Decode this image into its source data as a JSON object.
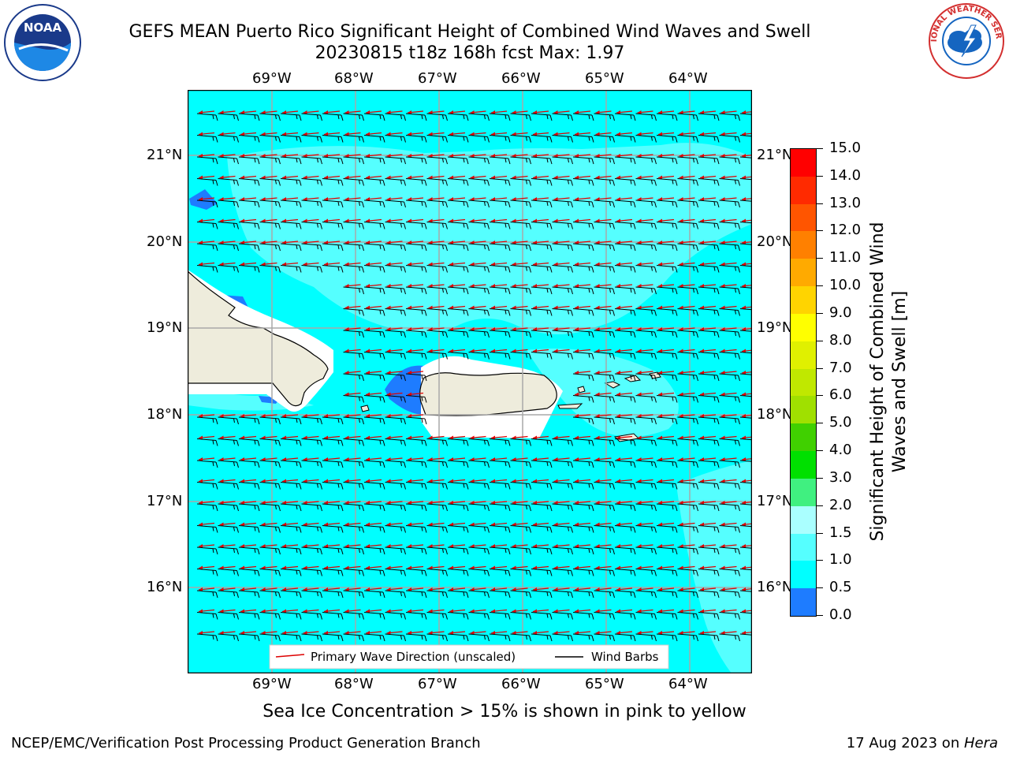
{
  "header": {
    "title_line1": "GEFS MEAN Puerto Rico Significant Height of Combined Wind Waves and Swell",
    "title_line2": "20230815 t18z 168h fcst   Max: 1.97",
    "noaa_logo": "NOAA",
    "nws_logo": "NATIONAL WEATHER SERVICE"
  },
  "map": {
    "lon_labels": [
      "69°W",
      "68°W",
      "67°W",
      "66°W",
      "65°W",
      "64°W"
    ],
    "lat_labels": [
      "21°N",
      "20°N",
      "19°N",
      "18°N",
      "17°N",
      "16°N"
    ],
    "ocean_color": "#00ffff",
    "land_color": "#eeecdc",
    "legend": {
      "wave_label": "Primary Wave Direction (unscaled)",
      "barb_label": "Wind Barbs"
    }
  },
  "colorbar": {
    "label": "Significant Height of Combined Wind Waves and Swell [m]",
    "ticks": [
      "15.0",
      "14.0",
      "13.0",
      "12.0",
      "11.0",
      "10.0",
      "9.0",
      "8.0",
      "7.0",
      "6.0",
      "5.0",
      "4.0",
      "3.0",
      "2.0",
      "1.5",
      "1.0",
      "0.5",
      "0.0"
    ],
    "colors": [
      "#ff0000",
      "#ff2a00",
      "#ff5500",
      "#ff8000",
      "#ffaa00",
      "#ffd400",
      "#ffff00",
      "#e0f000",
      "#c0e800",
      "#a0e000",
      "#40d000",
      "#00e000",
      "#40f080",
      "#aaffff",
      "#55ffff",
      "#00ffff",
      "#1e7cff",
      "#0000ff"
    ]
  },
  "caption": "Sea Ice Concentration > 15% is shown in pink to yellow",
  "footer": {
    "left": "NCEP/EMC/Verification Post Processing Product Generation Branch",
    "date": "17 Aug 2023 on ",
    "host": "Hera"
  }
}
